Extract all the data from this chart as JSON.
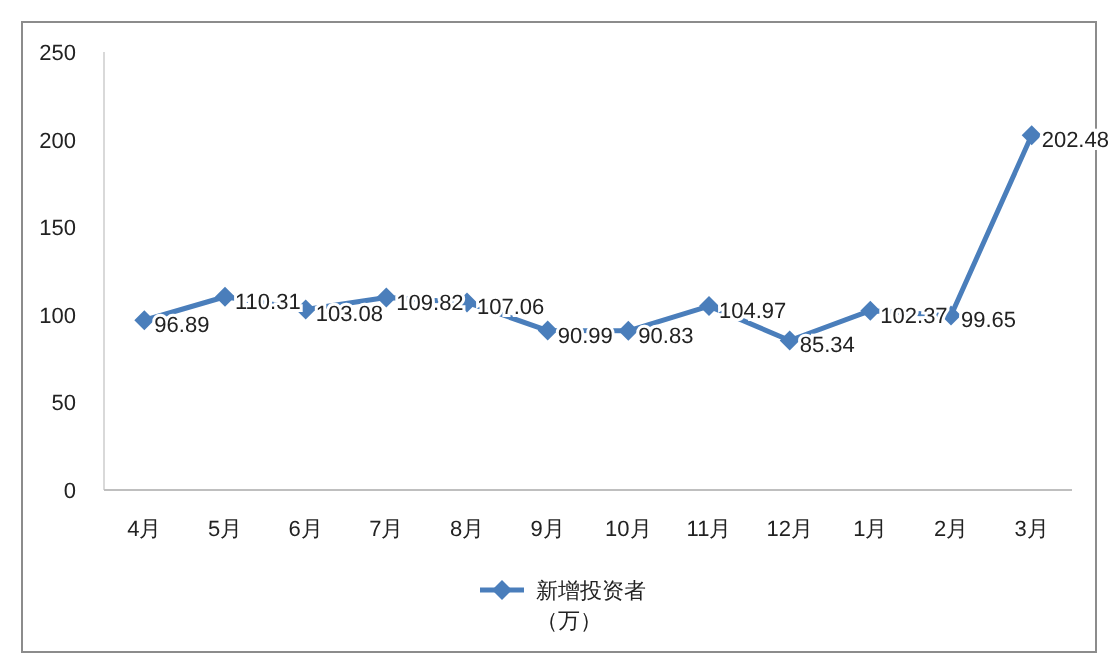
{
  "chart_data": {
    "type": "line",
    "categories": [
      "4月",
      "5月",
      "6月",
      "7月",
      "8月",
      "9月",
      "10月",
      "11月",
      "12月",
      "1月",
      "2月",
      "3月"
    ],
    "series": [
      {
        "name": "新增投资者（万）",
        "color": "#4a7ebb",
        "values": [
          96.89,
          110.31,
          103.08,
          109.82,
          107.06,
          90.99,
          90.83,
          104.97,
          85.34,
          102.37,
          99.65,
          202.48
        ]
      }
    ],
    "ylim": [
      0,
      250
    ],
    "yticks": [
      0,
      50,
      100,
      150,
      200,
      250
    ],
    "grid": false,
    "legend": "bottom",
    "marker": "diamond",
    "line_style": "solid",
    "data_labels": true
  }
}
